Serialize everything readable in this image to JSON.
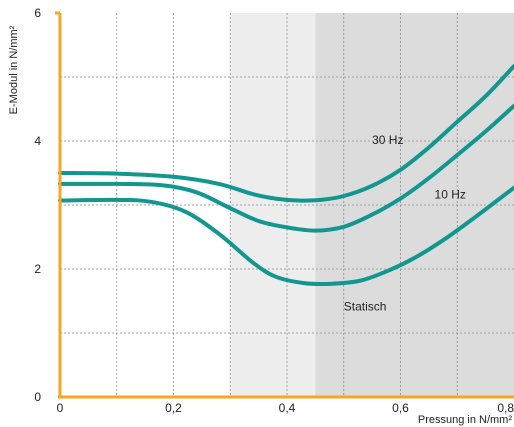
{
  "chart_data": {
    "type": "line",
    "xlabel": "Pressung in N/mm²",
    "ylabel": "E-Modul in N/mm²",
    "xlim": [
      0,
      0.8
    ],
    "ylim": [
      0,
      6
    ],
    "x_ticks": [
      "0",
      "0,2",
      "0,4",
      "0,6",
      "0,8"
    ],
    "y_ticks": [
      "0",
      "2",
      "4",
      "6"
    ],
    "grid": true,
    "background_bands": [
      {
        "from": 0.3,
        "to": 0.45,
        "color": "#ededee"
      },
      {
        "from": 0.45,
        "to": 0.8,
        "color": "#dcdcdd"
      }
    ],
    "series": [
      {
        "name": "30 Hz",
        "color": "#11978f",
        "label_at": [
          0.55,
          3.95
        ],
        "points": [
          [
            0,
            3.5
          ],
          [
            0.1,
            3.49
          ],
          [
            0.2,
            3.44
          ],
          [
            0.28,
            3.33
          ],
          [
            0.34,
            3.17
          ],
          [
            0.38,
            3.1
          ],
          [
            0.42,
            3.07
          ],
          [
            0.46,
            3.08
          ],
          [
            0.5,
            3.14
          ],
          [
            0.55,
            3.3
          ],
          [
            0.6,
            3.55
          ],
          [
            0.65,
            3.9
          ],
          [
            0.7,
            4.3
          ],
          [
            0.75,
            4.7
          ],
          [
            0.8,
            5.17
          ]
        ]
      },
      {
        "name": "10 Hz",
        "color": "#11978f",
        "label_at": [
          0.66,
          3.1
        ],
        "points": [
          [
            0,
            3.33
          ],
          [
            0.1,
            3.33
          ],
          [
            0.18,
            3.31
          ],
          [
            0.24,
            3.2
          ],
          [
            0.3,
            2.95
          ],
          [
            0.35,
            2.75
          ],
          [
            0.4,
            2.65
          ],
          [
            0.45,
            2.6
          ],
          [
            0.5,
            2.66
          ],
          [
            0.55,
            2.85
          ],
          [
            0.6,
            3.1
          ],
          [
            0.65,
            3.42
          ],
          [
            0.7,
            3.78
          ],
          [
            0.75,
            4.15
          ],
          [
            0.8,
            4.55
          ]
        ]
      },
      {
        "name": "Statisch",
        "color": "#11978f",
        "label_at": [
          0.5,
          1.35
        ],
        "points": [
          [
            0,
            3.07
          ],
          [
            0.1,
            3.08
          ],
          [
            0.16,
            3.05
          ],
          [
            0.22,
            2.9
          ],
          [
            0.28,
            2.55
          ],
          [
            0.34,
            2.1
          ],
          [
            0.38,
            1.88
          ],
          [
            0.43,
            1.78
          ],
          [
            0.48,
            1.77
          ],
          [
            0.53,
            1.82
          ],
          [
            0.58,
            1.98
          ],
          [
            0.63,
            2.2
          ],
          [
            0.68,
            2.48
          ],
          [
            0.73,
            2.8
          ],
          [
            0.8,
            3.27
          ]
        ]
      }
    ]
  }
}
